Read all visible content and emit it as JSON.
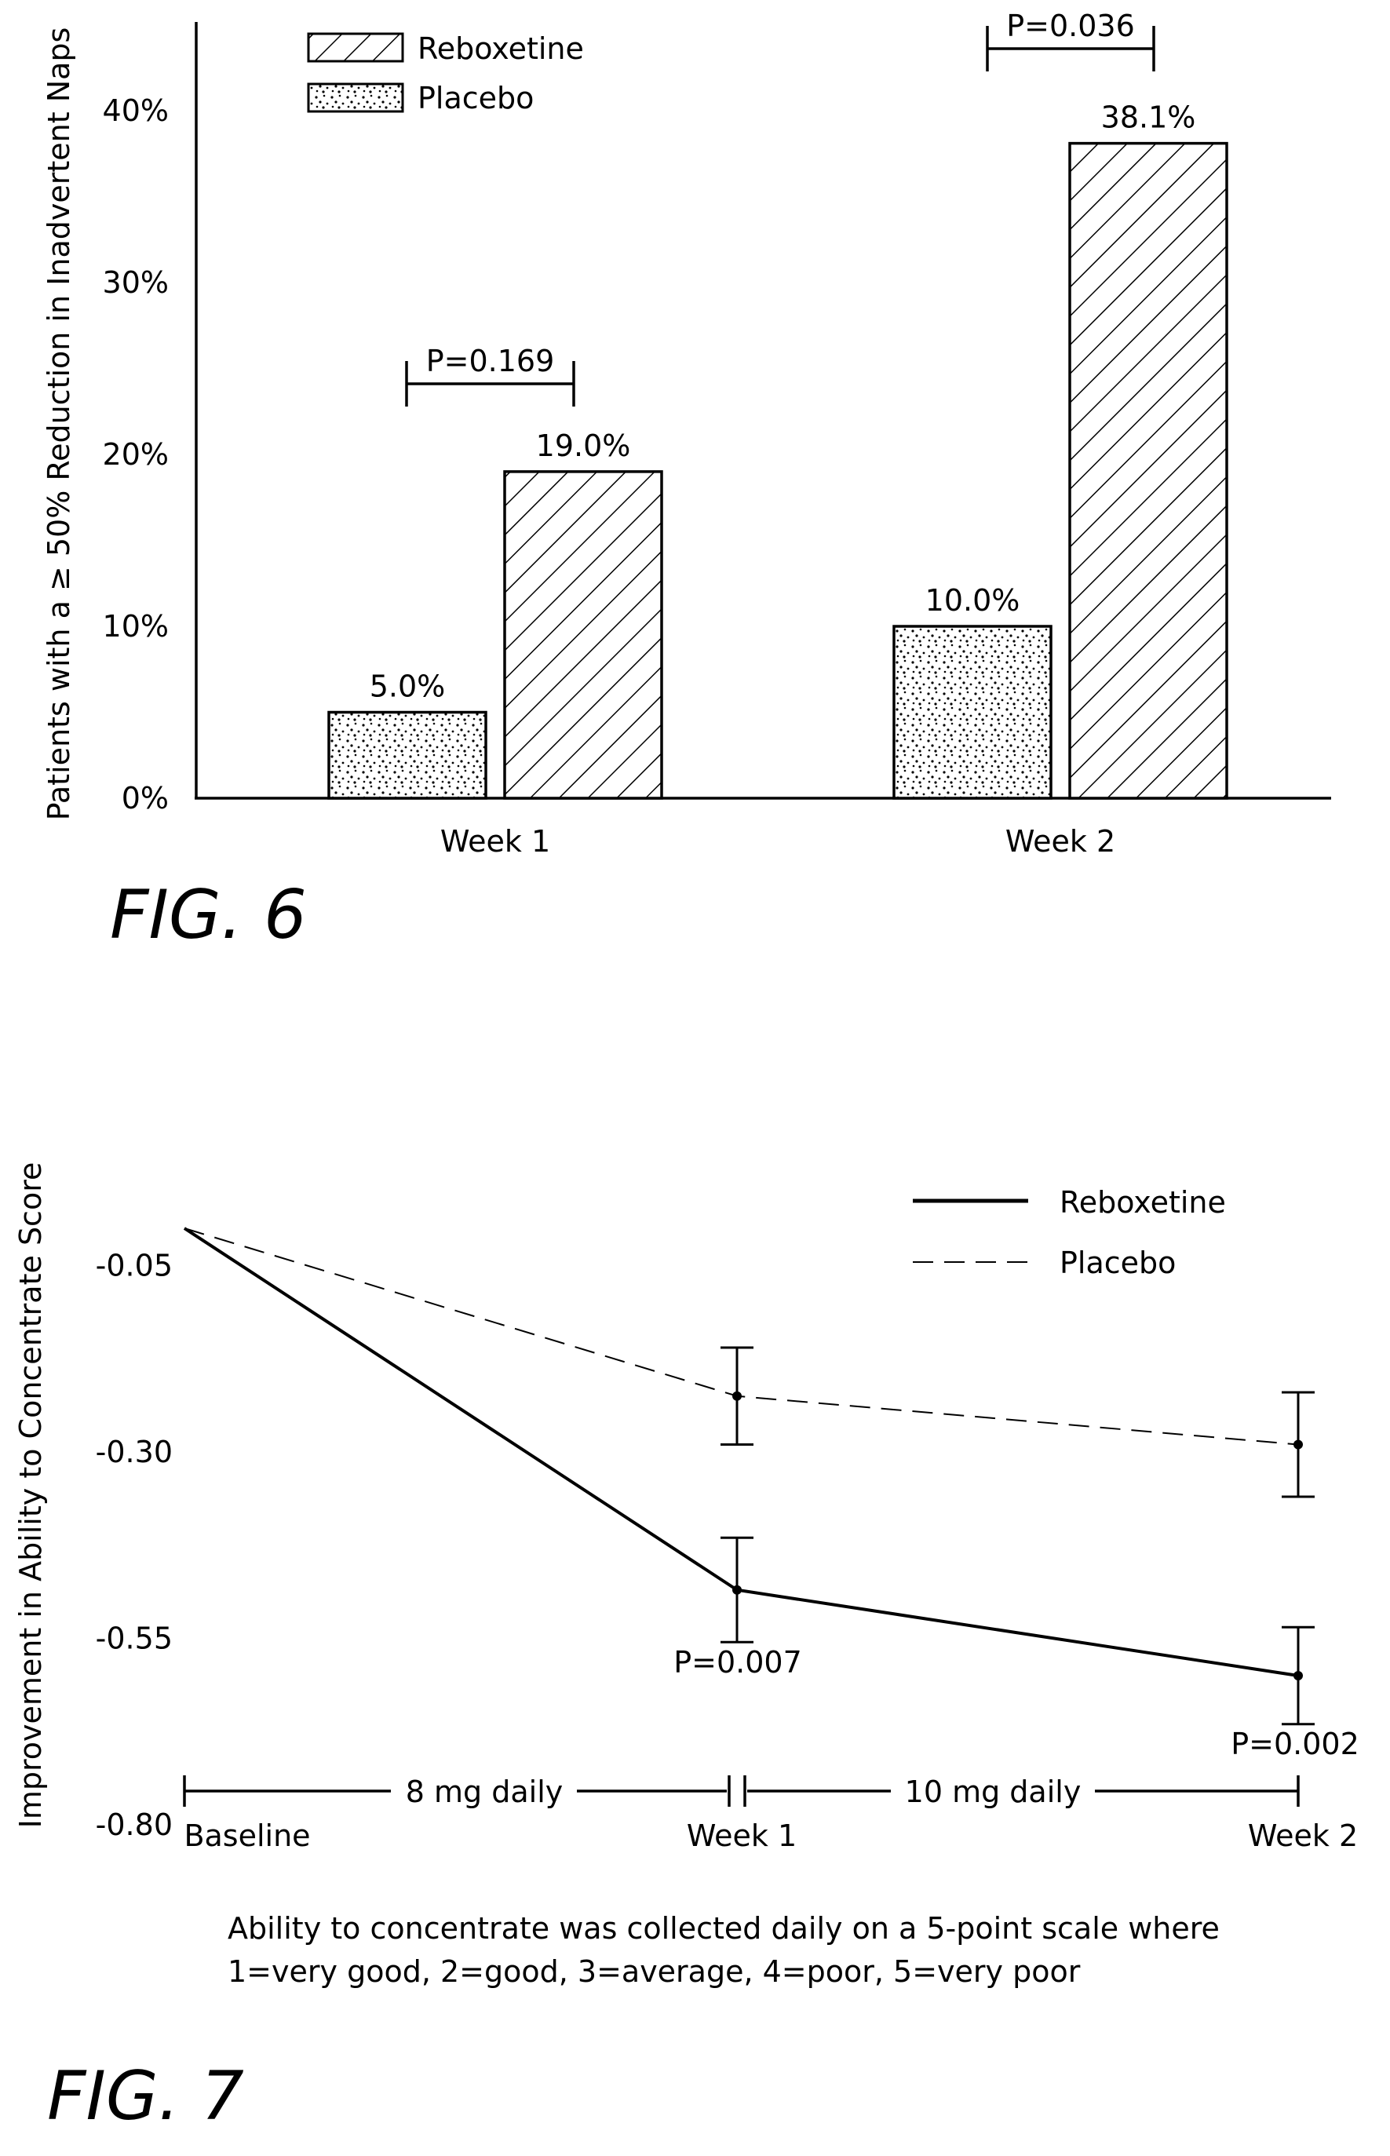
{
  "figures": {
    "fig6_label": "FIG. 6",
    "fig7_label": "FIG. 7"
  },
  "chart_data": [
    {
      "type": "bar",
      "ylabel": "Patients with a ≥ 50% Reduction in Inadvertent Naps",
      "yticks": [
        "0%",
        "10%",
        "20%",
        "30%",
        "40%"
      ],
      "ylim": [
        0,
        45
      ],
      "categories": [
        "Week 1",
        "Week 2"
      ],
      "legend_position": "top-left",
      "series": [
        {
          "name": "Placebo",
          "pattern": "stipple",
          "values": [
            5.0,
            10.0
          ],
          "labels": [
            "5.0%",
            "10.0%"
          ]
        },
        {
          "name": "Reboxetine",
          "pattern": "hatch",
          "values": [
            19.0,
            38.1
          ],
          "labels": [
            "19.0%",
            "38.1%"
          ]
        }
      ],
      "legend_order": [
        "Reboxetine",
        "Placebo"
      ],
      "annotations": [
        {
          "category": "Week 1",
          "text": "P=0.169"
        },
        {
          "category": "Week 2",
          "text": "P=0.036"
        }
      ]
    },
    {
      "type": "line",
      "ylabel": "Improvement in Ability to Concentrate Score",
      "yticks": [
        "-0.05",
        "-0.30",
        "-0.55",
        "-0.80"
      ],
      "ylim": [
        -0.8,
        0.05
      ],
      "x": [
        "Baseline",
        "Week 1",
        "Week 2"
      ],
      "legend_position": "top-right",
      "series": [
        {
          "name": "Reboxetine",
          "style": "solid",
          "values": [
            0.0,
            -0.485,
            -0.6
          ],
          "err": [
            null,
            0.07,
            0.065
          ]
        },
        {
          "name": "Placebo",
          "style": "dashed",
          "values": [
            0.0,
            -0.225,
            -0.29
          ],
          "err": [
            null,
            0.065,
            0.07
          ]
        }
      ],
      "annotations": [
        {
          "x": "Week 1",
          "text": "P=0.007"
        },
        {
          "x": "Week 2",
          "text": "P=0.002"
        }
      ],
      "dosing": [
        "8 mg daily",
        "10 mg daily"
      ],
      "footnote": [
        "Ability to concentrate was collected daily on a 5-point scale where",
        "1=very good, 2=good, 3=average, 4=poor, 5=very poor"
      ]
    }
  ]
}
